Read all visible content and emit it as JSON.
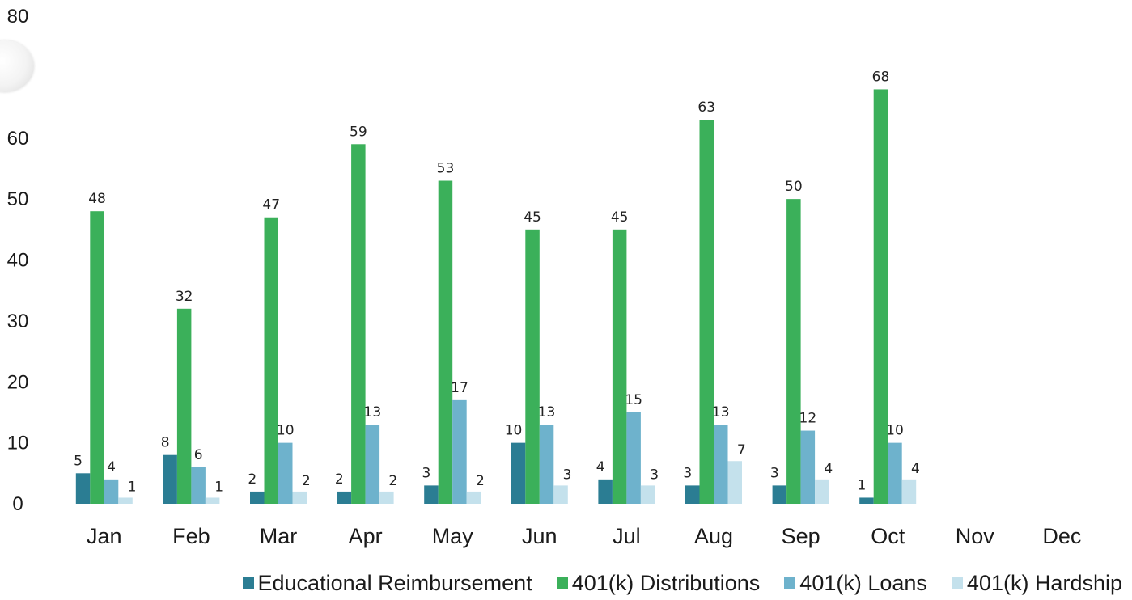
{
  "chart_data": {
    "type": "bar",
    "title": "",
    "xlabel": "",
    "ylabel": "",
    "ylim": [
      0,
      80
    ],
    "yticks": [
      "0",
      "10",
      "20",
      "30",
      "40",
      "50",
      "60",
      "80"
    ],
    "ytick_values": [
      0,
      10,
      20,
      30,
      40,
      50,
      60,
      80
    ],
    "grid": false,
    "legend_position": "bottom",
    "categories": [
      "Jan",
      "Feb",
      "Mar",
      "Apr",
      "May",
      "Jun",
      "Jul",
      "Aug",
      "Sep",
      "Oct",
      "Nov",
      "Dec"
    ],
    "series": [
      {
        "name": "Educational Reimbursement",
        "color": "#2b7d93",
        "values": [
          5,
          8,
          2,
          2,
          3,
          10,
          4,
          3,
          3,
          1,
          null,
          null
        ]
      },
      {
        "name": "401(k) Distributions",
        "color": "#3bb05a",
        "values": [
          48,
          32,
          47,
          59,
          53,
          45,
          45,
          63,
          50,
          68,
          null,
          null
        ]
      },
      {
        "name": "401(k) Loans",
        "color": "#6eb2cc",
        "values": [
          4,
          6,
          10,
          13,
          17,
          13,
          15,
          13,
          12,
          10,
          null,
          null
        ]
      },
      {
        "name": "401(k) Hardship",
        "color": "#c4e1ec",
        "values": [
          1,
          1,
          2,
          2,
          2,
          3,
          3,
          7,
          4,
          4,
          null,
          null
        ]
      }
    ]
  }
}
